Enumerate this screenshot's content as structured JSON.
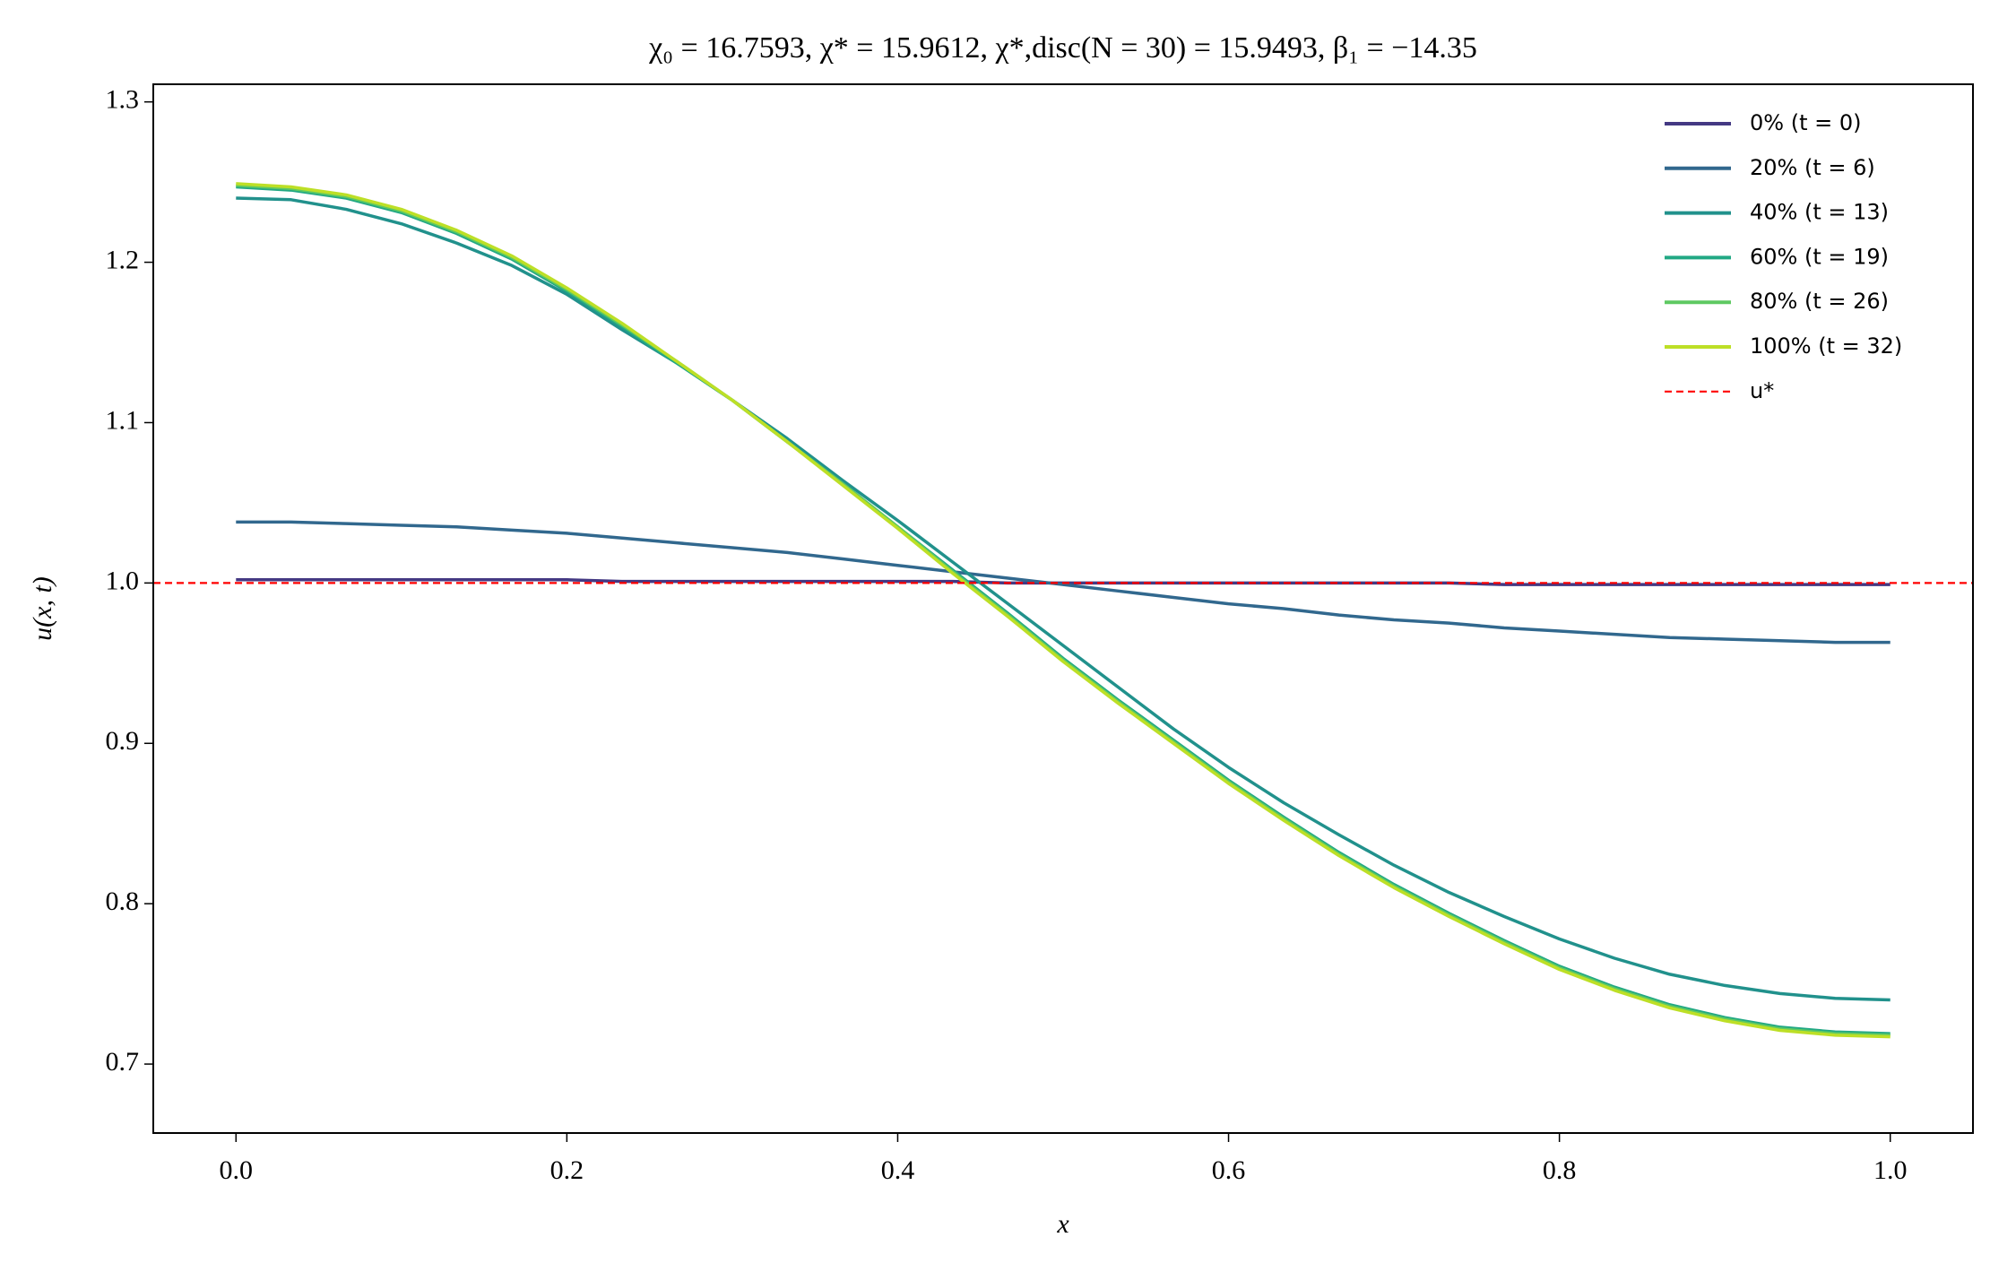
{
  "chart_data": {
    "type": "line",
    "title": "χ₀ = 16.7593,  χ* = 15.9612,  χ*,disc(N = 30) = 15.9493,  β₁ = −14.35",
    "x_label": "x",
    "y_label": "u(x, t)",
    "x": [
      0,
      0.0333,
      0.0667,
      0.1,
      0.1333,
      0.1667,
      0.2,
      0.2333,
      0.2667,
      0.3,
      0.3333,
      0.3667,
      0.4,
      0.4333,
      0.4667,
      0.5,
      0.5333,
      0.5667,
      0.6,
      0.6333,
      0.6667,
      0.7,
      0.7333,
      0.7667,
      0.8,
      0.8333,
      0.8667,
      0.9,
      0.9333,
      0.9667,
      1
    ],
    "series": [
      {
        "name": "0% (t = 0)",
        "color": "#443983",
        "values": [
          1.002,
          1.002,
          1.002,
          1.002,
          1.002,
          1.002,
          1.002,
          1.001,
          1.001,
          1.001,
          1.001,
          1.001,
          1.001,
          1.001,
          1.0,
          1.0,
          1.0,
          1.0,
          1.0,
          1.0,
          1.0,
          1.0,
          1.0,
          0.999,
          0.999,
          0.999,
          0.999,
          0.999,
          0.999,
          0.999,
          0.999
        ]
      },
      {
        "name": "20% (t = 6)",
        "color": "#31688e",
        "values": [
          1.038,
          1.038,
          1.037,
          1.036,
          1.035,
          1.033,
          1.031,
          1.028,
          1.025,
          1.022,
          1.019,
          1.015,
          1.011,
          1.007,
          1.003,
          0.999,
          0.995,
          0.991,
          0.987,
          0.984,
          0.98,
          0.977,
          0.975,
          0.972,
          0.97,
          0.968,
          0.966,
          0.965,
          0.964,
          0.963,
          0.963
        ]
      },
      {
        "name": "40% (t = 13)",
        "color": "#21918c",
        "values": [
          1.24,
          1.239,
          1.233,
          1.224,
          1.212,
          1.198,
          1.18,
          1.158,
          1.137,
          1.114,
          1.09,
          1.064,
          1.039,
          1.013,
          0.987,
          0.961,
          0.935,
          0.909,
          0.885,
          0.863,
          0.843,
          0.824,
          0.807,
          0.792,
          0.778,
          0.766,
          0.756,
          0.749,
          0.744,
          0.741,
          0.74
        ]
      },
      {
        "name": "60% (t = 19)",
        "color": "#22a884",
        "values": [
          1.247,
          1.245,
          1.24,
          1.231,
          1.218,
          1.202,
          1.182,
          1.16,
          1.137,
          1.114,
          1.088,
          1.062,
          1.035,
          1.008,
          0.981,
          0.953,
          0.927,
          0.902,
          0.877,
          0.854,
          0.832,
          0.812,
          0.794,
          0.777,
          0.761,
          0.748,
          0.737,
          0.729,
          0.723,
          0.72,
          0.719
        ]
      },
      {
        "name": "80% (t = 26)",
        "color": "#5ec962",
        "values": [
          1.248,
          1.246,
          1.241,
          1.232,
          1.219,
          1.203,
          1.183,
          1.161,
          1.138,
          1.114,
          1.088,
          1.062,
          1.035,
          1.007,
          0.98,
          0.952,
          0.926,
          0.901,
          0.876,
          0.853,
          0.831,
          0.811,
          0.793,
          0.776,
          0.76,
          0.747,
          0.736,
          0.728,
          0.722,
          0.719,
          0.718
        ]
      },
      {
        "name": "100% (t = 32)",
        "color": "#bddf26",
        "values": [
          1.249,
          1.247,
          1.242,
          1.233,
          1.22,
          1.204,
          1.184,
          1.162,
          1.138,
          1.114,
          1.088,
          1.061,
          1.034,
          1.006,
          0.979,
          0.951,
          0.925,
          0.9,
          0.875,
          0.852,
          0.83,
          0.81,
          0.792,
          0.775,
          0.759,
          0.746,
          0.735,
          0.727,
          0.721,
          0.718,
          0.717
        ]
      }
    ],
    "hline": {
      "name": "u*",
      "value": 1.0,
      "color": "#ff0000"
    },
    "xlim": [
      -0.05,
      1.05
    ],
    "xticks": [
      {
        "value": 0,
        "label": "0.0"
      },
      0.2,
      0.4,
      0.6,
      0.8,
      {
        "value": 1,
        "label": "1.0"
      }
    ],
    "ylim": [
      0.657,
      1.311
    ],
    "yticks": [
      0.7,
      0.8,
      0.9,
      {
        "value": 1,
        "label": "1.0"
      },
      1.1,
      1.2,
      1.3
    ],
    "legend": "upper right"
  }
}
